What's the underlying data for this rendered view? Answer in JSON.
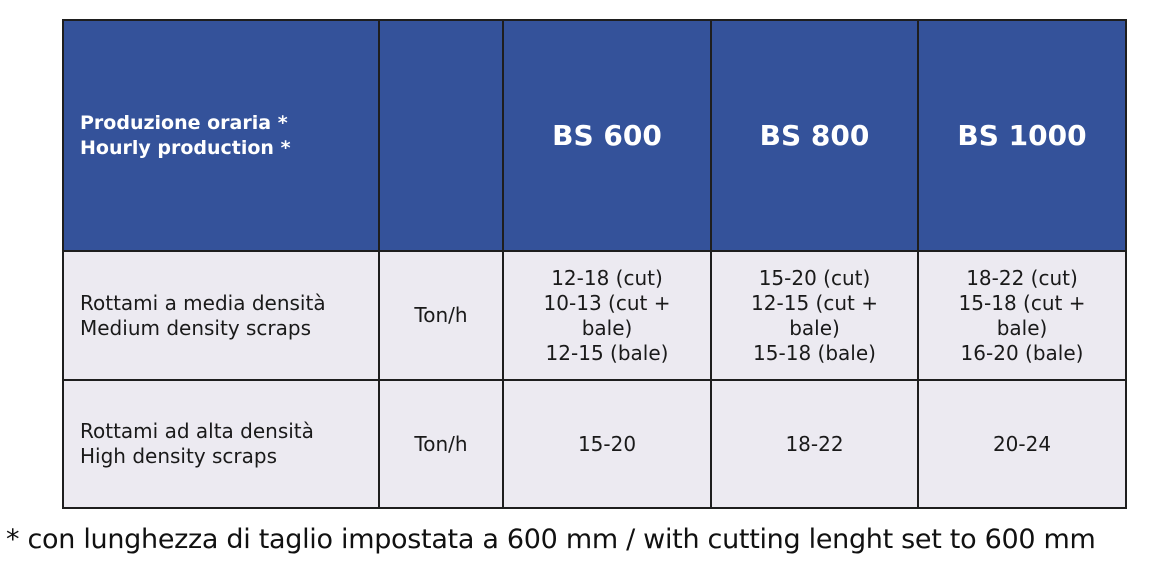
{
  "header": {
    "label_it": "Produzione oraria *",
    "label_en": "Hourly production *",
    "unit_header": "",
    "models": [
      "BS 600",
      "BS 800",
      "BS 1000"
    ]
  },
  "rows": [
    {
      "label_it": "Rottami a media densità",
      "label_en": "Medium density scraps",
      "unit": "Ton/h",
      "values": [
        [
          "12-18 (cut)",
          "10-13 (cut +",
          "bale)",
          "12-15 (bale)"
        ],
        [
          "15-20 (cut)",
          "12-15 (cut +",
          "bale)",
          "15-18 (bale)"
        ],
        [
          "18-22 (cut)",
          "15-18 (cut +",
          "bale)",
          "16-20 (bale)"
        ]
      ]
    },
    {
      "label_it": "Rottami ad alta densità",
      "label_en": "High density scraps",
      "unit": "Ton/h",
      "values": [
        "15-20",
        "18-22",
        "20-24"
      ]
    }
  ],
  "footnote": "* con lunghezza di taglio impostata a 600 mm / with cutting lenght set to 600 mm",
  "colors": {
    "header_bg": "#34529a",
    "header_text": "#ffffff",
    "body_bg": "#eceaf1",
    "border": "#1e1e1e"
  }
}
